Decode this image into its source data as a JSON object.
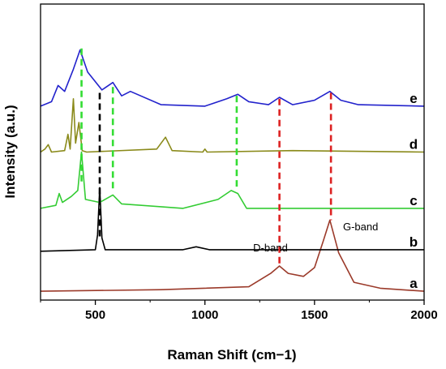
{
  "chart_data": {
    "type": "line",
    "title": "",
    "xlabel": "Raman Shift (cm−1)",
    "ylabel": "Intensity (a.u.)",
    "xlim": [
      250,
      2000
    ],
    "ylim": [
      0,
      1
    ],
    "grid": false,
    "legend": "none",
    "xticks": [
      500,
      1000,
      1500,
      2000
    ],
    "y_ticks_labeled": false,
    "colors": {
      "a": "#9b3a2a",
      "b": "#000000",
      "c": "#33cc33",
      "d": "#8a8a1a",
      "e": "#2222cc",
      "marker_black": "#000000",
      "marker_green": "#33dd33",
      "marker_red": "#dd2222"
    },
    "series": [
      {
        "name": "a",
        "x": [
          250,
          800,
          1200,
          1300,
          1340,
          1380,
          1450,
          1500,
          1540,
          1570,
          1610,
          1680,
          1800,
          2000
        ],
        "values": [
          0.03,
          0.035,
          0.045,
          0.09,
          0.115,
          0.09,
          0.08,
          0.11,
          0.2,
          0.27,
          0.16,
          0.06,
          0.04,
          0.03
        ]
      },
      {
        "name": "b",
        "x": [
          250,
          500,
          510,
          520,
          530,
          545,
          900,
          960,
          1020,
          2000
        ],
        "values": [
          0.165,
          0.17,
          0.22,
          0.38,
          0.21,
          0.17,
          0.17,
          0.18,
          0.17,
          0.17
        ]
      },
      {
        "name": "c",
        "x": [
          250,
          320,
          335,
          350,
          390,
          420,
          437,
          455,
          520,
          580,
          620,
          900,
          1060,
          1120,
          1150,
          1190,
          1300,
          2000
        ],
        "values": [
          0.31,
          0.32,
          0.36,
          0.33,
          0.35,
          0.37,
          0.5,
          0.34,
          0.33,
          0.355,
          0.325,
          0.31,
          0.34,
          0.37,
          0.36,
          0.31,
          0.31,
          0.31
        ]
      },
      {
        "name": "d",
        "x": [
          250,
          270,
          285,
          300,
          360,
          375,
          385,
          400,
          410,
          425,
          440,
          460,
          780,
          820,
          850,
          990,
          1000,
          1010,
          1400,
          2000
        ],
        "values": [
          0.5,
          0.51,
          0.525,
          0.5,
          0.505,
          0.56,
          0.51,
          0.68,
          0.53,
          0.6,
          0.505,
          0.5,
          0.51,
          0.55,
          0.505,
          0.5,
          0.51,
          0.5,
          0.505,
          0.5
        ]
      },
      {
        "name": "e",
        "x": [
          250,
          300,
          330,
          360,
          400,
          430,
          465,
          530,
          580,
          620,
          660,
          800,
          1000,
          1100,
          1150,
          1200,
          1290,
          1340,
          1400,
          1500,
          1570,
          1620,
          1700,
          2000
        ],
        "values": [
          0.655,
          0.67,
          0.725,
          0.705,
          0.78,
          0.845,
          0.77,
          0.71,
          0.735,
          0.69,
          0.705,
          0.66,
          0.655,
          0.68,
          0.695,
          0.67,
          0.66,
          0.685,
          0.66,
          0.675,
          0.705,
          0.675,
          0.66,
          0.655
        ]
      }
    ],
    "markers": [
      {
        "x": 520,
        "y_top": 0.7,
        "y_bottom": 0.21,
        "color": "black"
      },
      {
        "x": 437,
        "y_top": 0.85,
        "y_bottom": 0.4,
        "color": "green"
      },
      {
        "x": 580,
        "y_top": 0.72,
        "y_bottom": 0.365,
        "color": "green"
      },
      {
        "x": 1145,
        "y_top": 0.69,
        "y_bottom": 0.37,
        "color": "green"
      },
      {
        "x": 1340,
        "y_top": 0.68,
        "y_bottom": 0.115,
        "color": "red"
      },
      {
        "x": 1575,
        "y_top": 0.7,
        "y_bottom": 0.27,
        "color": "red"
      }
    ],
    "annotations": [
      {
        "text": "D-band",
        "x": 1220,
        "y": 0.165
      },
      {
        "text": "G-band",
        "x": 1630,
        "y": 0.235
      }
    ]
  }
}
